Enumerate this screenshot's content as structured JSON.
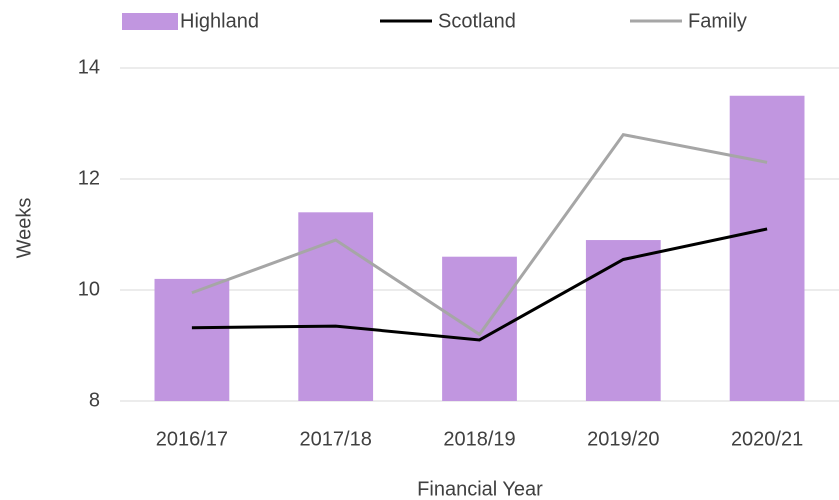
{
  "chart_data": {
    "type": "bar",
    "x_label": "Financial Year",
    "y_label": "Weeks",
    "categories": [
      "2016/17",
      "2017/18",
      "2018/19",
      "2019/20",
      "2020/21"
    ],
    "series": [
      {
        "name": "Highland",
        "type": "bar",
        "color": "#c196e0",
        "values": [
          10.2,
          11.4,
          10.6,
          10.9,
          13.5
        ]
      },
      {
        "name": "Scotland",
        "type": "line",
        "color": "#000000",
        "values": [
          9.32,
          9.35,
          9.1,
          10.55,
          11.1
        ]
      },
      {
        "name": "Family",
        "type": "line",
        "color": "#a6a6a6",
        "values": [
          9.95,
          10.9,
          9.2,
          12.8,
          12.3
        ]
      }
    ],
    "ylim": [
      8,
      14
    ],
    "yticks": [
      8,
      10,
      12,
      14
    ],
    "grid": true,
    "legend": "top"
  }
}
